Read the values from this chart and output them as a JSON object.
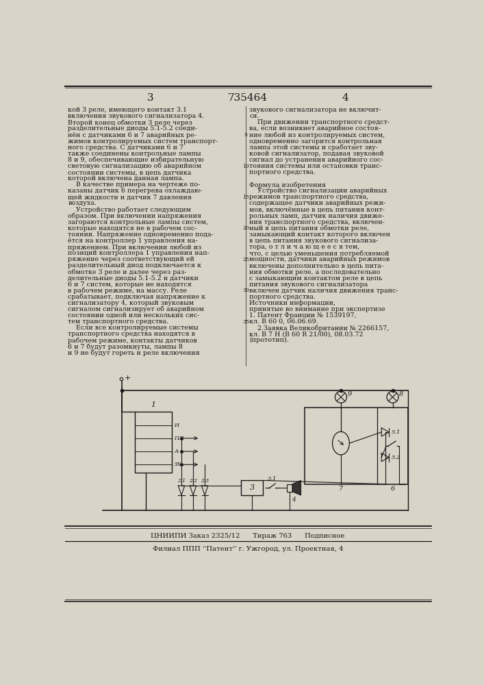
{
  "page_number_left": "3",
  "patent_number": "735464",
  "page_number_right": "4",
  "bg_color": "#d8d4c8",
  "text_color": "#1a1818",
  "left_col_lines": [
    "кой 3 реле, имеющего контакт 3.1",
    "включения звукового сигнализатора 4.",
    "Второй конец обмотки 3 реле через",
    "разделительные диоды 5.1-5.2 соеди-",
    "нён с датчиками 6 и 7 аварийных ре-",
    "жимов контролируемых систем транспорт-",
    "ного средства. С датчиками 6 и 7",
    "также соединены контрольные лампы",
    "8 и 9, обеспечивающие избирательную",
    "световую сигнализацию об аварийном",
    "состоянии системы, в цепь датчика",
    "которой включена данная лампа.",
    "    В качестве примера на чертеже по-",
    "казаны датчик 6 перегрева охлаждаю-",
    "щей жидкости и датчик 7 давления",
    "воздуха.",
    "    Устройство работает следующим",
    "образом. При включении напряжения",
    "загораются контрольные лампы систем,",
    "которые находятся не в рабочем сос-",
    "тоянии. Напряжение одновременно пода-",
    "ётся на контроллер 1 управления на-",
    "пряжением. При включении любой из",
    "позиций контроллера 1 управления нап-",
    "ряжение через соответствующий ей",
    "разделительный диод подключается к",
    "обмотке 3 реле и далее через раз-",
    "делительные диоды 5.1-5.2 и датчики",
    "6 и 7 систем, которые не находятся",
    "в рабочем режиме, на массу. Реле",
    "срабатывает, подключая напряжение к",
    "сигнализатору 4, который звуковым",
    "сигналом сигнализирует об аварийном",
    "состоянии одной или нескольких сис-",
    "тем транспортного средства.",
    "    Если все контролируемые системы",
    "транспортного средства находятся в",
    "рабочем режиме, контакты датчиков",
    "6 и 7 будут разомкнуты, лампы 8",
    "и 9 не будут гореть и реле включения"
  ],
  "right_col_lines": [
    "звукового сигнализатора не включит-",
    "ся.",
    "    При движении транспортного средст-",
    "ва, если возникнет аварийное состоя-",
    "ние любой из контролируемых систем,",
    "одновременно загорится контрольная",
    "лампа этой системы и сработает зву-",
    "ковой сигнализатор, подавая звуковой",
    "сигнал до устранения аварийного сос-",
    "тояния системы или остановки транс-",
    "портного средства.",
    "Формула изобретения",
    "    Устройство сигнализации аварийных",
    "режимов транспортного средства,",
    "содержащее датчики аварийных режи-",
    "мов, включённые в цепь питания конт-",
    "рольных ламп, датчик наличия движе-",
    "ния транспортного средства, включен-",
    "ный в цепь питания обмотки реле,",
    "замыкающий контакт которого включен",
    "в цепь питания звукового сигнализа-",
    "тора, о т л и ч а ю щ е е с я тем,",
    "что, с целью уменьшения потребляемой",
    "мощности, датчики аварийных режимов",
    "включены дополнительно в цепь пита-",
    "ния обмотки реле, а последовательно",
    "с замыкающим контактом реле в цепь",
    "питания звукового сигнализатора",
    "включен датчик наличия движения транс-",
    "портного средства.",
    "Источники информации,",
    "принятые во внимание при экспертизе",
    "1. Патент Франции № 1539197,",
    "кл. В 60 0, 06.06.69.",
    "    2.Заявка Великобритании № 2266157,",
    "кл. В 7 Н (В 60 R 21/00), 08.03.72",
    "(прототип)."
  ],
  "footer1": "ЦНИИПИ Заказ 2325/12      Тираж 763      Подписное",
  "footer2": "Филиал ППП ''Патент'' г. Ужгород, ул. Проектная, 4",
  "line_number_5": "5",
  "line_number_10": "10",
  "line_number_15": "15",
  "line_number_20": "20",
  "line_number_25": "25",
  "line_number_30": "30",
  "line_number_35": "35"
}
